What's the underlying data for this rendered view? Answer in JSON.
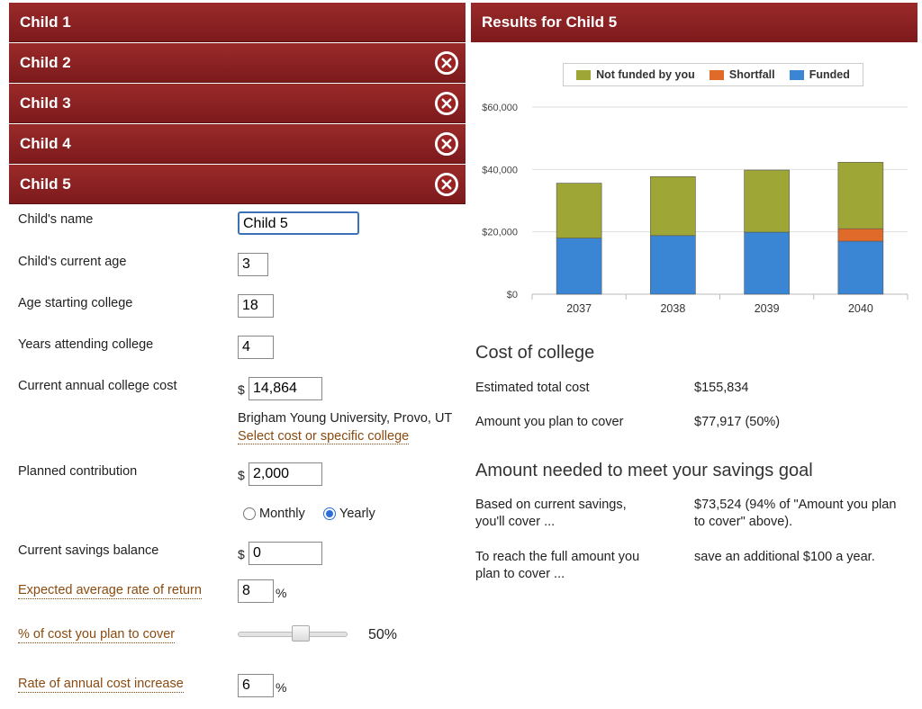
{
  "children": [
    {
      "label": "Child 1",
      "closable": false
    },
    {
      "label": "Child 2",
      "closable": true
    },
    {
      "label": "Child 3",
      "closable": true
    },
    {
      "label": "Child 4",
      "closable": true
    },
    {
      "label": "Child 5",
      "closable": true
    }
  ],
  "form": {
    "name_label": "Child's name",
    "name_value": "Child 5",
    "age_label": "Child's current age",
    "age_value": "3",
    "start_label": "Age starting college",
    "start_value": "18",
    "years_label": "Years attending college",
    "years_value": "4",
    "cost_label": "Current annual college cost",
    "currency_symbol": "$",
    "cost_value": "14,864",
    "college_name": "Brigham Young University, Provo, UT",
    "select_college_link": "Select cost or specific college",
    "contribution_label": "Planned contribution",
    "contribution_value": "2,000",
    "radio_monthly": "Monthly",
    "radio_yearly": "Yearly",
    "radio_selected": "Yearly",
    "savings_label": "Current savings balance",
    "savings_value": "0",
    "return_label": "Expected average rate of return",
    "return_value": "8",
    "percent_symbol": "%",
    "cover_label": "% of cost you plan to cover",
    "cover_value": 50,
    "cover_display": "50%",
    "increase_label": "Rate of annual cost increase",
    "increase_value": "6"
  },
  "results": {
    "title": "Results for Child 5",
    "cost_section_title": "Cost of college",
    "total_cost_label": "Estimated total cost",
    "total_cost_value": "$155,834",
    "plan_cover_label": "Amount you plan to cover",
    "plan_cover_value": "$77,917 (50%)",
    "goal_section_title": "Amount needed to meet your savings goal",
    "current_savings_label": "Based on current savings, you'll cover ...",
    "current_savings_value": "$73,524 (94% of \"Amount you plan to cover\" above).",
    "full_amount_label": "To reach the full amount you plan to cover ...",
    "full_amount_value": "save an additional $100 a year."
  },
  "chart_data": {
    "type": "bar",
    "stacked": true,
    "categories": [
      "2037",
      "2038",
      "2039",
      "2040"
    ],
    "series": [
      {
        "name": "Funded",
        "color": "#3a86d4",
        "values": [
          18000,
          18800,
          19900,
          17000
        ]
      },
      {
        "name": "Shortfall",
        "color": "#e06a2a",
        "values": [
          0,
          0,
          0,
          4000
        ]
      },
      {
        "name": "Not funded by you",
        "color": "#9ea636",
        "values": [
          17600,
          18900,
          19900,
          21300
        ]
      }
    ],
    "legend_order": [
      "Not funded by you",
      "Shortfall",
      "Funded"
    ],
    "legend_placement": "top",
    "y_ticks": [
      "$0",
      "$20,000",
      "$40,000",
      "$60,000"
    ],
    "y_tick_values": [
      0,
      20000,
      40000,
      60000
    ],
    "ylim": [
      0,
      60000
    ],
    "grid": true
  }
}
